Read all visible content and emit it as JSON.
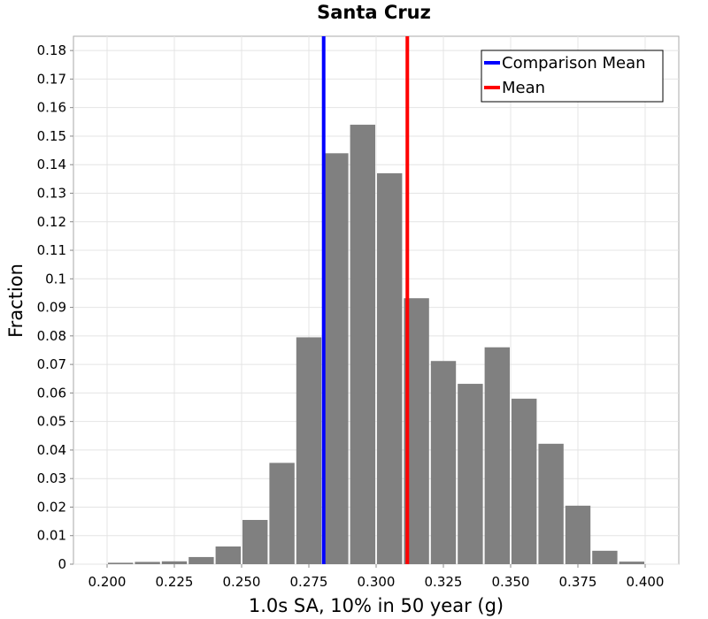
{
  "chart_data": {
    "type": "bar",
    "title": "Santa Cruz",
    "xlabel": "1.0s SA, 10% in 50 year (g)",
    "ylabel": "Fraction",
    "xlim": [
      0.1875,
      0.4125
    ],
    "ylim": [
      0,
      0.185
    ],
    "bin_width": 0.01,
    "bin_centers": [
      0.205,
      0.215,
      0.225,
      0.235,
      0.245,
      0.255,
      0.265,
      0.275,
      0.285,
      0.295,
      0.305,
      0.315,
      0.325,
      0.335,
      0.345,
      0.355,
      0.365,
      0.375,
      0.385,
      0.395
    ],
    "values": [
      0.0005,
      0.0008,
      0.001,
      0.0025,
      0.0062,
      0.0155,
      0.0355,
      0.0795,
      0.144,
      0.154,
      0.137,
      0.0932,
      0.0712,
      0.0632,
      0.076,
      0.058,
      0.0422,
      0.0205,
      0.0047,
      0.0009
    ],
    "xticks": [
      "0.200",
      "0.225",
      "0.250",
      "0.275",
      "0.300",
      "0.325",
      "0.350",
      "0.375",
      "0.400"
    ],
    "yticks": [
      "0",
      "0.01",
      "0.02",
      "0.03",
      "0.04",
      "0.05",
      "0.06",
      "0.07",
      "0.08",
      "0.09",
      "0.1",
      "0.11",
      "0.12",
      "0.13",
      "0.14",
      "0.15",
      "0.16",
      "0.17",
      "0.18"
    ],
    "vlines": [
      {
        "name": "Comparison Mean",
        "x": 0.2805,
        "color": "#0000ff"
      },
      {
        "name": "Mean",
        "x": 0.3116,
        "color": "#ff0000"
      }
    ],
    "bar_color": "#808080",
    "grid": true,
    "legend_position": "top-right"
  }
}
